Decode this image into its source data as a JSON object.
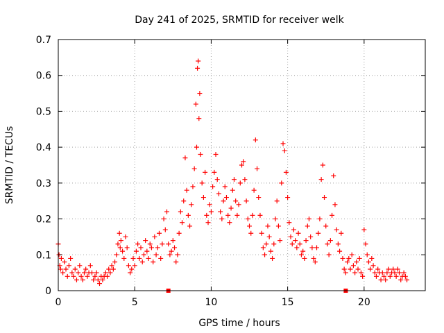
{
  "chart_data": {
    "type": "scatter",
    "title": "Day 241 of 2025, SRMTID for receiver welk",
    "xlabel": "GPS time / hours",
    "ylabel": "SRMTID / TECUs",
    "xlim": [
      0,
      24
    ],
    "ylim": [
      0,
      0.7
    ],
    "xticks": [
      0,
      5,
      10,
      15,
      20
    ],
    "xtick_labels": [
      "0",
      "5",
      "10",
      "15",
      "20"
    ],
    "yticks": [
      0,
      0.1,
      0.2,
      0.3,
      0.4,
      0.5,
      0.6,
      0.7
    ],
    "ytick_labels": [
      "0",
      "0.1",
      "0.2",
      "0.3",
      "0.4",
      "0.5",
      "0.6",
      "0.7"
    ],
    "grid": true,
    "marker": "+",
    "color": "#ff0000",
    "series": [
      {
        "name": "SRMTID",
        "points": [
          [
            0.0,
            0.13
          ],
          [
            0.05,
            0.1
          ],
          [
            0.1,
            0.07
          ],
          [
            0.15,
            0.06
          ],
          [
            0.2,
            0.09
          ],
          [
            0.3,
            0.05
          ],
          [
            0.4,
            0.08
          ],
          [
            0.5,
            0.06
          ],
          [
            0.6,
            0.04
          ],
          [
            0.7,
            0.07
          ],
          [
            0.8,
            0.09
          ],
          [
            0.9,
            0.05
          ],
          [
            1.0,
            0.04
          ],
          [
            1.1,
            0.06
          ],
          [
            1.2,
            0.03
          ],
          [
            1.3,
            0.05
          ],
          [
            1.4,
            0.07
          ],
          [
            1.5,
            0.04
          ],
          [
            1.6,
            0.03
          ],
          [
            1.7,
            0.05
          ],
          [
            1.8,
            0.06
          ],
          [
            1.9,
            0.04
          ],
          [
            2.0,
            0.05
          ],
          [
            2.1,
            0.07
          ],
          [
            2.2,
            0.05
          ],
          [
            2.3,
            0.03
          ],
          [
            2.4,
            0.04
          ],
          [
            2.5,
            0.05
          ],
          [
            2.6,
            0.03
          ],
          [
            2.7,
            0.02
          ],
          [
            2.8,
            0.04
          ],
          [
            2.9,
            0.03
          ],
          [
            3.0,
            0.04
          ],
          [
            3.1,
            0.05
          ],
          [
            3.2,
            0.04
          ],
          [
            3.3,
            0.06
          ],
          [
            3.4,
            0.05
          ],
          [
            3.5,
            0.07
          ],
          [
            3.6,
            0.06
          ],
          [
            3.7,
            0.08
          ],
          [
            3.8,
            0.1
          ],
          [
            3.9,
            0.13
          ],
          [
            4.0,
            0.16
          ],
          [
            4.05,
            0.12
          ],
          [
            4.1,
            0.14
          ],
          [
            4.2,
            0.11
          ],
          [
            4.3,
            0.09
          ],
          [
            4.4,
            0.15
          ],
          [
            4.5,
            0.12
          ],
          [
            4.6,
            0.07
          ],
          [
            4.7,
            0.05
          ],
          [
            4.8,
            0.06
          ],
          [
            4.9,
            0.09
          ],
          [
            5.0,
            0.07
          ],
          [
            5.1,
            0.11
          ],
          [
            5.2,
            0.13
          ],
          [
            5.3,
            0.09
          ],
          [
            5.4,
            0.12
          ],
          [
            5.5,
            0.08
          ],
          [
            5.6,
            0.1
          ],
          [
            5.7,
            0.14
          ],
          [
            5.8,
            0.11
          ],
          [
            5.9,
            0.09
          ],
          [
            6.0,
            0.13
          ],
          [
            6.1,
            0.12
          ],
          [
            6.2,
            0.08
          ],
          [
            6.3,
            0.15
          ],
          [
            6.4,
            0.1
          ],
          [
            6.5,
            0.12
          ],
          [
            6.6,
            0.16
          ],
          [
            6.7,
            0.09
          ],
          [
            6.8,
            0.13
          ],
          [
            6.9,
            0.2
          ],
          [
            7.0,
            0.17
          ],
          [
            7.1,
            0.22
          ],
          [
            7.2,
            0.13
          ],
          [
            7.3,
            0.1
          ],
          [
            7.4,
            0.11
          ],
          [
            7.5,
            0.14
          ],
          [
            7.6,
            0.12
          ],
          [
            7.7,
            0.08
          ],
          [
            7.8,
            0.1
          ],
          [
            7.9,
            0.16
          ],
          [
            8.0,
            0.22
          ],
          [
            8.1,
            0.19
          ],
          [
            8.2,
            0.25
          ],
          [
            8.3,
            0.37
          ],
          [
            8.4,
            0.28
          ],
          [
            8.5,
            0.21
          ],
          [
            8.6,
            0.18
          ],
          [
            8.7,
            0.24
          ],
          [
            8.8,
            0.29
          ],
          [
            8.9,
            0.34
          ],
          [
            9.0,
            0.52
          ],
          [
            9.05,
            0.4
          ],
          [
            9.1,
            0.62
          ],
          [
            9.15,
            0.64
          ],
          [
            9.2,
            0.48
          ],
          [
            9.25,
            0.55
          ],
          [
            9.3,
            0.38
          ],
          [
            9.4,
            0.3
          ],
          [
            9.5,
            0.26
          ],
          [
            9.6,
            0.33
          ],
          [
            9.7,
            0.21
          ],
          [
            9.8,
            0.19
          ],
          [
            9.9,
            0.24
          ],
          [
            10.0,
            0.22
          ],
          [
            10.1,
            0.29
          ],
          [
            10.2,
            0.33
          ],
          [
            10.3,
            0.38
          ],
          [
            10.4,
            0.31
          ],
          [
            10.5,
            0.27
          ],
          [
            10.6,
            0.22
          ],
          [
            10.7,
            0.2
          ],
          [
            10.8,
            0.25
          ],
          [
            10.9,
            0.29
          ],
          [
            11.0,
            0.26
          ],
          [
            11.1,
            0.21
          ],
          [
            11.2,
            0.19
          ],
          [
            11.3,
            0.23
          ],
          [
            11.4,
            0.28
          ],
          [
            11.5,
            0.31
          ],
          [
            11.6,
            0.25
          ],
          [
            11.7,
            0.21
          ],
          [
            11.8,
            0.24
          ],
          [
            11.9,
            0.3
          ],
          [
            12.0,
            0.35
          ],
          [
            12.1,
            0.36
          ],
          [
            12.2,
            0.31
          ],
          [
            12.3,
            0.25
          ],
          [
            12.4,
            0.2
          ],
          [
            12.5,
            0.18
          ],
          [
            12.6,
            0.16
          ],
          [
            12.7,
            0.21
          ],
          [
            12.8,
            0.28
          ],
          [
            12.9,
            0.42
          ],
          [
            13.0,
            0.34
          ],
          [
            13.1,
            0.26
          ],
          [
            13.2,
            0.21
          ],
          [
            13.3,
            0.16
          ],
          [
            13.4,
            0.12
          ],
          [
            13.5,
            0.1
          ],
          [
            13.6,
            0.13
          ],
          [
            13.7,
            0.18
          ],
          [
            13.8,
            0.15
          ],
          [
            13.9,
            0.11
          ],
          [
            14.0,
            0.09
          ],
          [
            14.1,
            0.13
          ],
          [
            14.2,
            0.2
          ],
          [
            14.3,
            0.25
          ],
          [
            14.4,
            0.18
          ],
          [
            14.5,
            0.14
          ],
          [
            14.6,
            0.3
          ],
          [
            14.7,
            0.41
          ],
          [
            14.8,
            0.39
          ],
          [
            14.9,
            0.33
          ],
          [
            15.0,
            0.26
          ],
          [
            15.1,
            0.19
          ],
          [
            15.2,
            0.15
          ],
          [
            15.3,
            0.13
          ],
          [
            15.4,
            0.17
          ],
          [
            15.5,
            0.14
          ],
          [
            15.6,
            0.12
          ],
          [
            15.7,
            0.16
          ],
          [
            15.8,
            0.13
          ],
          [
            15.9,
            0.1
          ],
          [
            16.0,
            0.11
          ],
          [
            16.1,
            0.09
          ],
          [
            16.2,
            0.14
          ],
          [
            16.3,
            0.18
          ],
          [
            16.4,
            0.2
          ],
          [
            16.5,
            0.15
          ],
          [
            16.6,
            0.12
          ],
          [
            16.7,
            0.09
          ],
          [
            16.8,
            0.08
          ],
          [
            16.9,
            0.12
          ],
          [
            17.0,
            0.16
          ],
          [
            17.1,
            0.2
          ],
          [
            17.2,
            0.31
          ],
          [
            17.3,
            0.35
          ],
          [
            17.4,
            0.26
          ],
          [
            17.5,
            0.18
          ],
          [
            17.6,
            0.13
          ],
          [
            17.7,
            0.1
          ],
          [
            17.8,
            0.14
          ],
          [
            17.9,
            0.21
          ],
          [
            18.0,
            0.32
          ],
          [
            18.1,
            0.24
          ],
          [
            18.2,
            0.17
          ],
          [
            18.3,
            0.13
          ],
          [
            18.4,
            0.11
          ],
          [
            18.5,
            0.16
          ],
          [
            18.6,
            0.09
          ],
          [
            18.7,
            0.06
          ],
          [
            18.8,
            0.05
          ],
          [
            18.9,
            0.08
          ],
          [
            19.0,
            0.09
          ],
          [
            19.1,
            0.06
          ],
          [
            19.2,
            0.1
          ],
          [
            19.3,
            0.07
          ],
          [
            19.4,
            0.05
          ],
          [
            19.5,
            0.08
          ],
          [
            19.6,
            0.06
          ],
          [
            19.7,
            0.09
          ],
          [
            19.8,
            0.05
          ],
          [
            19.9,
            0.04
          ],
          [
            20.0,
            0.17
          ],
          [
            20.1,
            0.13
          ],
          [
            20.2,
            0.1
          ],
          [
            20.3,
            0.08
          ],
          [
            20.4,
            0.06
          ],
          [
            20.5,
            0.09
          ],
          [
            20.6,
            0.07
          ],
          [
            20.7,
            0.05
          ],
          [
            20.8,
            0.04
          ],
          [
            20.9,
            0.06
          ],
          [
            21.0,
            0.05
          ],
          [
            21.1,
            0.03
          ],
          [
            21.2,
            0.05
          ],
          [
            21.3,
            0.04
          ],
          [
            21.4,
            0.03
          ],
          [
            21.5,
            0.05
          ],
          [
            21.6,
            0.06
          ],
          [
            21.7,
            0.04
          ],
          [
            21.8,
            0.05
          ],
          [
            21.9,
            0.06
          ],
          [
            22.0,
            0.05
          ],
          [
            22.1,
            0.04
          ],
          [
            22.2,
            0.06
          ],
          [
            22.3,
            0.05
          ],
          [
            22.4,
            0.03
          ],
          [
            22.5,
            0.04
          ],
          [
            22.6,
            0.05
          ],
          [
            22.7,
            0.04
          ],
          [
            22.8,
            0.03
          ]
        ]
      }
    ],
    "markers_on_axis": [
      {
        "x": 7.2,
        "y": 0
      },
      {
        "x": 18.8,
        "y": 0
      }
    ]
  }
}
